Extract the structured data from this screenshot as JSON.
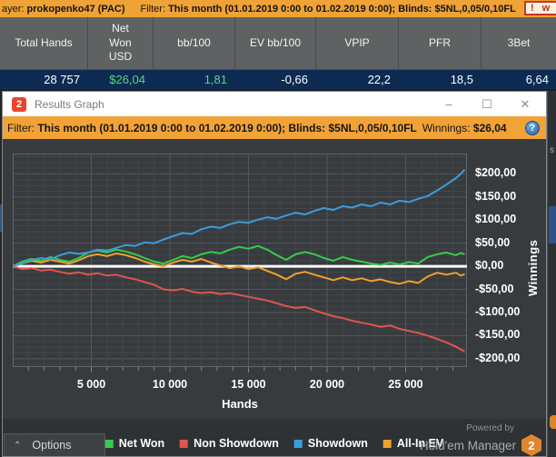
{
  "top_bar": {
    "player_label": "ayer:",
    "player_name": "prokopenko47 (PAC)",
    "filter_label": "Filter:",
    "filter_value": "This month (01.01.2019 0:00 to 01.02.2019 0:00); Blinds: $5NL,0,05/0,10FL",
    "warning_icon": "!",
    "warning_text": "w"
  },
  "stats_table": {
    "columns": [
      "Total Hands",
      "Net Won USD",
      "bb/100",
      "EV bb/100",
      "VPIP",
      "PFR",
      "3Bet"
    ],
    "values": [
      "28 757",
      "$26,04",
      "1,81",
      "-0,66",
      "22,2",
      "18,5",
      "6,64"
    ]
  },
  "window": {
    "logo_text": "2",
    "title": "Results Graph",
    "controls": {
      "minimize": "–",
      "maximize": "☐",
      "close": "✕"
    }
  },
  "filter_bar": {
    "label": "Filter:",
    "value": "This month (01.01.2019 0:00 to 01.02.2019 0:00); Blinds: $5NL,0,05/0,10FL",
    "winnings_label": "Winnings:",
    "winnings_value": "$26,04",
    "help_icon": "?"
  },
  "chart_data": {
    "type": "line",
    "xlabel": "Hands",
    "ylabel": "Winnings",
    "xlim": [
      0,
      28900
    ],
    "ylim": [
      -218,
      244
    ],
    "grid": {
      "minor_x_step": 1000,
      "major_x_step": 5000,
      "minor_y_step": 12.5,
      "major_y_step": 50
    },
    "zero_line": true,
    "legend_position": "bottom",
    "draw_order": [
      1,
      3,
      0,
      2
    ],
    "x_ticks": [
      {
        "label": "5 000",
        "value": 5000
      },
      {
        "label": "10 000",
        "value": 10000
      },
      {
        "label": "15 000",
        "value": 15000
      },
      {
        "label": "20 000",
        "value": 20000
      },
      {
        "label": "25 000",
        "value": 25000
      }
    ],
    "y_ticks": [
      {
        "label": "$200,00",
        "value": 200
      },
      {
        "label": "$150,00",
        "value": 150
      },
      {
        "label": "$100,00",
        "value": 100
      },
      {
        "label": "$50,00",
        "value": 50
      },
      {
        "label": "$0,00",
        "value": 0
      },
      {
        "label": "-$50,00",
        "value": -50
      },
      {
        "label": "-$100,00",
        "value": -100
      },
      {
        "label": "-$150,00",
        "value": -150
      },
      {
        "label": "-$200,00",
        "value": -200
      }
    ],
    "series": [
      {
        "name": "Net Won",
        "color": "#36cc4c",
        "final_value": 26.04,
        "points": [
          [
            0,
            0
          ],
          [
            600,
            10
          ],
          [
            1200,
            16
          ],
          [
            1800,
            12
          ],
          [
            2400,
            20
          ],
          [
            3000,
            14
          ],
          [
            3600,
            10
          ],
          [
            4200,
            18
          ],
          [
            4800,
            30
          ],
          [
            5400,
            34
          ],
          [
            6000,
            30
          ],
          [
            6600,
            36
          ],
          [
            7200,
            32
          ],
          [
            7800,
            26
          ],
          [
            8400,
            18
          ],
          [
            9000,
            10
          ],
          [
            9600,
            6
          ],
          [
            10200,
            14
          ],
          [
            10800,
            22
          ],
          [
            11400,
            18
          ],
          [
            12000,
            26
          ],
          [
            12600,
            31
          ],
          [
            13200,
            28
          ],
          [
            13800,
            36
          ],
          [
            14400,
            42
          ],
          [
            15000,
            38
          ],
          [
            15600,
            44
          ],
          [
            16200,
            36
          ],
          [
            16800,
            24
          ],
          [
            17400,
            14
          ],
          [
            18000,
            26
          ],
          [
            18600,
            31
          ],
          [
            19200,
            26
          ],
          [
            19800,
            18
          ],
          [
            20400,
            12
          ],
          [
            21000,
            20
          ],
          [
            21600,
            14
          ],
          [
            22200,
            10
          ],
          [
            22800,
            6
          ],
          [
            23400,
            3
          ],
          [
            24000,
            8
          ],
          [
            24600,
            4
          ],
          [
            25200,
            9
          ],
          [
            25800,
            6
          ],
          [
            26400,
            20
          ],
          [
            27000,
            26
          ],
          [
            27600,
            30
          ],
          [
            28200,
            24
          ],
          [
            28500,
            29
          ],
          [
            28757,
            26
          ]
        ]
      },
      {
        "name": "Non Showdown",
        "color": "#e25450",
        "final_value": -184,
        "points": [
          [
            0,
            0
          ],
          [
            600,
            -6
          ],
          [
            1200,
            -4
          ],
          [
            1800,
            -9
          ],
          [
            2400,
            -7
          ],
          [
            3000,
            -12
          ],
          [
            3600,
            -16
          ],
          [
            4200,
            -13
          ],
          [
            4800,
            -18
          ],
          [
            5400,
            -15
          ],
          [
            6000,
            -20
          ],
          [
            6600,
            -18
          ],
          [
            7200,
            -24
          ],
          [
            7800,
            -28
          ],
          [
            8400,
            -34
          ],
          [
            9000,
            -40
          ],
          [
            9600,
            -50
          ],
          [
            10200,
            -52
          ],
          [
            10800,
            -49
          ],
          [
            11400,
            -55
          ],
          [
            12000,
            -58
          ],
          [
            12600,
            -56
          ],
          [
            13200,
            -60
          ],
          [
            13800,
            -58
          ],
          [
            14400,
            -62
          ],
          [
            15000,
            -66
          ],
          [
            15600,
            -70
          ],
          [
            16200,
            -74
          ],
          [
            16800,
            -80
          ],
          [
            17400,
            -86
          ],
          [
            18000,
            -90
          ],
          [
            18600,
            -88
          ],
          [
            19200,
            -95
          ],
          [
            19800,
            -102
          ],
          [
            20400,
            -108
          ],
          [
            21000,
            -112
          ],
          [
            21600,
            -118
          ],
          [
            22200,
            -122
          ],
          [
            22800,
            -126
          ],
          [
            23400,
            -131
          ],
          [
            24000,
            -128
          ],
          [
            24600,
            -135
          ],
          [
            25200,
            -140
          ],
          [
            25800,
            -144
          ],
          [
            26400,
            -150
          ],
          [
            27000,
            -157
          ],
          [
            27600,
            -165
          ],
          [
            28200,
            -174
          ],
          [
            28500,
            -180
          ],
          [
            28757,
            -184
          ]
        ]
      },
      {
        "name": "Showdown",
        "color": "#3b9ddb",
        "final_value": 209,
        "points": [
          [
            0,
            0
          ],
          [
            600,
            6
          ],
          [
            1200,
            14
          ],
          [
            1800,
            18
          ],
          [
            2400,
            15
          ],
          [
            3000,
            24
          ],
          [
            3600,
            30
          ],
          [
            4200,
            27
          ],
          [
            4800,
            30
          ],
          [
            5400,
            36
          ],
          [
            6000,
            34
          ],
          [
            6600,
            40
          ],
          [
            7200,
            46
          ],
          [
            7800,
            44
          ],
          [
            8400,
            52
          ],
          [
            9000,
            50
          ],
          [
            9600,
            58
          ],
          [
            10200,
            65
          ],
          [
            10800,
            72
          ],
          [
            11400,
            70
          ],
          [
            12000,
            80
          ],
          [
            12600,
            86
          ],
          [
            13200,
            83
          ],
          [
            13800,
            91
          ],
          [
            14400,
            96
          ],
          [
            15000,
            94
          ],
          [
            15600,
            101
          ],
          [
            16200,
            106
          ],
          [
            16800,
            103
          ],
          [
            17400,
            110
          ],
          [
            18000,
            116
          ],
          [
            18600,
            112
          ],
          [
            19200,
            120
          ],
          [
            19800,
            126
          ],
          [
            20400,
            122
          ],
          [
            21000,
            130
          ],
          [
            21600,
            127
          ],
          [
            22200,
            134
          ],
          [
            22800,
            130
          ],
          [
            23400,
            138
          ],
          [
            24000,
            134
          ],
          [
            24600,
            142
          ],
          [
            25200,
            139
          ],
          [
            25800,
            146
          ],
          [
            26400,
            152
          ],
          [
            27000,
            164
          ],
          [
            27600,
            177
          ],
          [
            28200,
            191
          ],
          [
            28500,
            200
          ],
          [
            28757,
            209
          ]
        ]
      },
      {
        "name": "All-In EV",
        "color": "#f0a02e",
        "final_value": -17,
        "points": [
          [
            0,
            0
          ],
          [
            600,
            6
          ],
          [
            1200,
            12
          ],
          [
            1800,
            8
          ],
          [
            2400,
            14
          ],
          [
            3000,
            10
          ],
          [
            3600,
            6
          ],
          [
            4200,
            13
          ],
          [
            4800,
            22
          ],
          [
            5400,
            26
          ],
          [
            6000,
            22
          ],
          [
            6600,
            28
          ],
          [
            7200,
            24
          ],
          [
            7800,
            18
          ],
          [
            8400,
            10
          ],
          [
            9000,
            4
          ],
          [
            9600,
            0
          ],
          [
            10200,
            8
          ],
          [
            10800,
            14
          ],
          [
            11400,
            10
          ],
          [
            12000,
            16
          ],
          [
            12600,
            8
          ],
          [
            13200,
            2
          ],
          [
            13800,
            -4
          ],
          [
            14400,
            0
          ],
          [
            15000,
            -6
          ],
          [
            15600,
            -2
          ],
          [
            16200,
            -10
          ],
          [
            16800,
            -18
          ],
          [
            17400,
            -28
          ],
          [
            18000,
            -16
          ],
          [
            18600,
            -12
          ],
          [
            19200,
            -18
          ],
          [
            19800,
            -24
          ],
          [
            20400,
            -30
          ],
          [
            21000,
            -24
          ],
          [
            21600,
            -30
          ],
          [
            22200,
            -26
          ],
          [
            22800,
            -32
          ],
          [
            23400,
            -28
          ],
          [
            24000,
            -34
          ],
          [
            24600,
            -38
          ],
          [
            25200,
            -32
          ],
          [
            25800,
            -36
          ],
          [
            26400,
            -22
          ],
          [
            27000,
            -14
          ],
          [
            27600,
            -18
          ],
          [
            28200,
            -14
          ],
          [
            28500,
            -20
          ],
          [
            28757,
            -17
          ]
        ]
      }
    ]
  },
  "legend": [
    {
      "label": "Net Won",
      "color": "#36cc4c"
    },
    {
      "label": "Non Showdown",
      "color": "#e25450"
    },
    {
      "label": "Showdown",
      "color": "#3b9ddb"
    },
    {
      "label": "All-In EV",
      "color": "#f0a02e"
    }
  ],
  "footer": {
    "options_chevron": "⌃",
    "options_label": "Options",
    "powered_by": "Powered by",
    "brand": "Hold'em Manager",
    "brand_logo": "2"
  },
  "background_edge": {
    "partial_text": "s"
  },
  "colors": {
    "accent_orange": "#f2a338",
    "positive_green": "#55d687",
    "stats_row_navy": "#0d2a52",
    "graph_background": "#383b3e",
    "warning_red": "#c42b1c"
  }
}
